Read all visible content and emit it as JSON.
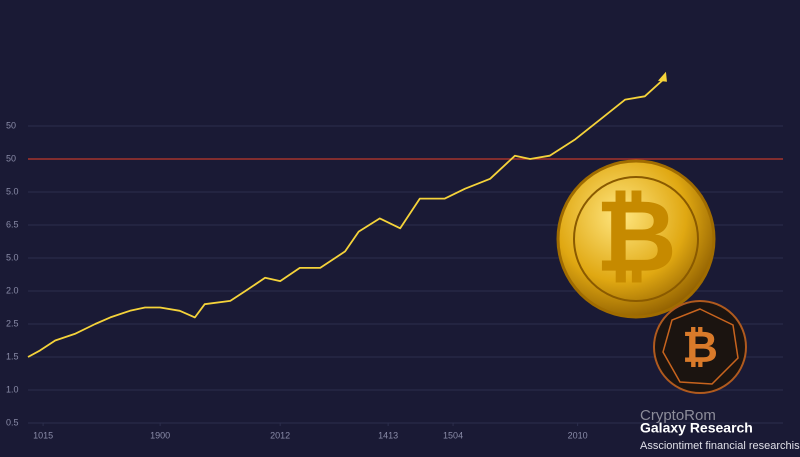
{
  "chart_data": {
    "type": "line",
    "x": [
      0,
      1.6,
      3.6,
      6.2,
      8.9,
      10.9,
      13.5,
      15.5,
      17.5,
      20.1,
      22.1,
      23.4,
      26.8,
      28.8,
      31.4,
      33.4,
      36.0,
      38.7,
      42.0,
      43.8,
      46.6,
      49.3,
      51.9,
      55.2,
      57.9,
      61.2,
      64.5,
      66.5,
      69.1,
      72.5,
      75.8,
      79.1,
      81.7,
      84.1
    ],
    "series": [
      {
        "color": "#f5d33a",
        "values": [
          2.0,
          2.2,
          2.5,
          2.7,
          3.0,
          3.2,
          3.4,
          3.5,
          3.5,
          3.4,
          3.2,
          3.6,
          3.7,
          4.0,
          4.4,
          4.3,
          4.7,
          4.7,
          5.2,
          5.8,
          6.2,
          5.9,
          6.8,
          6.8,
          7.1,
          7.4,
          8.1,
          8.0,
          8.1,
          8.6,
          9.2,
          9.8,
          9.9,
          10.4
        ]
      }
    ],
    "xlim": [
      0,
      100
    ],
    "xticks": [
      {
        "value": 2,
        "label": "1015"
      },
      {
        "value": 17.5,
        "label": "1900"
      },
      {
        "value": 33.4,
        "label": "2012"
      },
      {
        "value": 47.7,
        "label": "1413"
      },
      {
        "value": 56.3,
        "label": "1504"
      },
      {
        "value": 72.8,
        "label": "2010"
      }
    ],
    "ylim": [
      0,
      11
    ],
    "yticks": [
      {
        "value": 0,
        "label": "0.5"
      },
      {
        "value": 1,
        "label": "1.0"
      },
      {
        "value": 2,
        "label": "1.5"
      },
      {
        "value": 3,
        "label": "2.5"
      },
      {
        "value": 4,
        "label": "2.0"
      },
      {
        "value": 5,
        "label": "5.0"
      },
      {
        "value": 6,
        "label": "6.5"
      },
      {
        "value": 7,
        "label": "5.0"
      },
      {
        "value": 8,
        "label": "50"
      },
      {
        "value": 9,
        "label": "50"
      }
    ],
    "grid": true,
    "reference_line": {
      "value": 8,
      "color": "#c0392b"
    }
  },
  "branding": {
    "logo": "CryptoRom",
    "name": "Galaxy Research",
    "tagline": "Assciontimet financial researchis"
  }
}
